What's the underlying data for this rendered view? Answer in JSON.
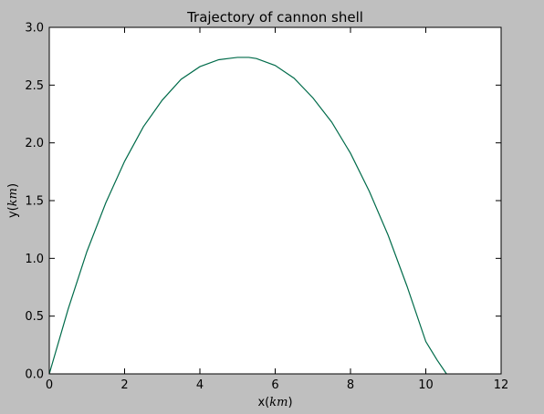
{
  "chart_data": {
    "type": "line",
    "title": "Trajectory of cannon shell",
    "xlabel": {
      "prefix": "x(",
      "unit": "km",
      "suffix": ")"
    },
    "ylabel": {
      "prefix": "y(",
      "unit": "km",
      "suffix": ")"
    },
    "xlim": [
      0,
      12
    ],
    "ylim": [
      0,
      3.0
    ],
    "xticks": [
      0,
      2,
      4,
      6,
      8,
      10,
      12
    ],
    "yticks": [
      0.0,
      0.5,
      1.0,
      1.5,
      2.0,
      2.5,
      3.0
    ],
    "xtick_labels": [
      "0",
      "2",
      "4",
      "6",
      "8",
      "10",
      "12"
    ],
    "ytick_labels": [
      "0.0",
      "0.5",
      "1.0",
      "1.5",
      "2.0",
      "2.5",
      "3.0"
    ],
    "grid": false,
    "line_color": "#006b4a",
    "series": [
      {
        "x": [
          0,
          0.5,
          1.0,
          1.5,
          2.0,
          2.5,
          3.0,
          3.5,
          4.0,
          4.5,
          5.0,
          5.3,
          5.5,
          6.0,
          6.5,
          7.0,
          7.5,
          8.0,
          8.5,
          9.0,
          9.5,
          10.0,
          10.3,
          10.55
        ],
        "y": [
          0,
          0.56,
          1.06,
          1.48,
          1.84,
          2.14,
          2.37,
          2.55,
          2.66,
          2.72,
          2.74,
          2.74,
          2.73,
          2.67,
          2.56,
          2.39,
          2.18,
          1.91,
          1.58,
          1.2,
          0.76,
          0.28,
          0.12,
          0
        ]
      }
    ]
  }
}
